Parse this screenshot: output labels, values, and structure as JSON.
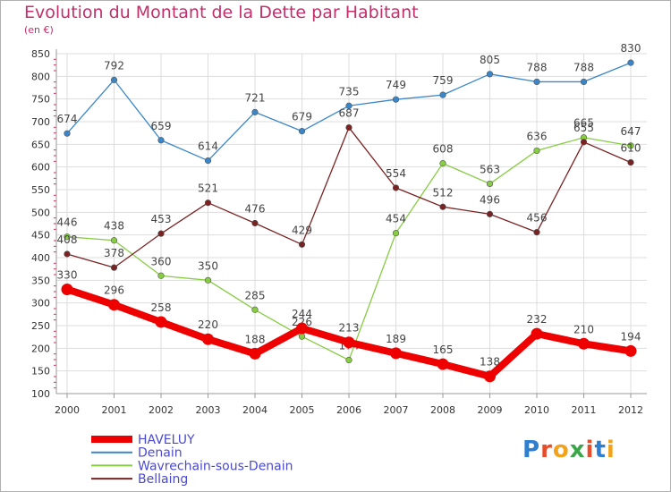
{
  "title": "Evolution du Montant de la Dette par Habitant",
  "subtitle": "(en €)",
  "logo": {
    "p": "P",
    "r": "r",
    "o": "o",
    "x": "x",
    "i": "i",
    "t": "t",
    "i2": "i"
  },
  "chart_data": {
    "type": "line",
    "title": "Evolution du Montant de la Dette par Habitant",
    "ylabel": "(en €)",
    "xlabel": "",
    "ylim": [
      100,
      850
    ],
    "yticks": [
      100,
      150,
      200,
      250,
      300,
      350,
      400,
      450,
      500,
      550,
      600,
      650,
      700,
      750,
      800,
      850
    ],
    "categories": [
      "2000",
      "2001",
      "2002",
      "2003",
      "2004",
      "2005",
      "2006",
      "2007",
      "2008",
      "2009",
      "2010",
      "2011",
      "2012"
    ],
    "grid": true,
    "legend_position": "bottom-left",
    "series": [
      {
        "name": "HAVELUY",
        "color": "#ee0000",
        "thick": true,
        "values": [
          330,
          296,
          258,
          220,
          188,
          244,
          213,
          189,
          165,
          138,
          232,
          210,
          194
        ],
        "labels": [
          "330",
          "296",
          "258",
          "220",
          "188",
          "244",
          "213",
          "189",
          "165",
          "138",
          "232",
          "210",
          "194"
        ]
      },
      {
        "name": "Denain",
        "color": "#3a86c8",
        "thick": false,
        "values": [
          674,
          792,
          659,
          614,
          721,
          679,
          735,
          749,
          759,
          805,
          788,
          788,
          830
        ],
        "labels": [
          "674",
          "792",
          "659",
          "614",
          "721",
          "679",
          "735",
          "749",
          "759",
          "805",
          "788",
          "788",
          "830"
        ]
      },
      {
        "name": "Wavrechain-sous-Denain",
        "color": "#88cc44",
        "thick": false,
        "values": [
          446,
          438,
          360,
          350,
          285,
          226,
          174,
          454,
          608,
          563,
          636,
          665,
          647
        ],
        "labels": [
          "446",
          "438",
          "360",
          "350",
          "285",
          "226",
          "174",
          "454",
          "608",
          "563",
          "636",
          "665",
          "647"
        ]
      },
      {
        "name": "Bellaing",
        "color": "#7a2222",
        "thick": false,
        "values": [
          408,
          378,
          453,
          521,
          476,
          429,
          687,
          554,
          512,
          496,
          456,
          655,
          610
        ],
        "labels": [
          "408",
          "378",
          "453",
          "521",
          "476",
          "429",
          "687",
          "554",
          "512",
          "496",
          "456",
          "655",
          "610"
        ]
      }
    ]
  }
}
